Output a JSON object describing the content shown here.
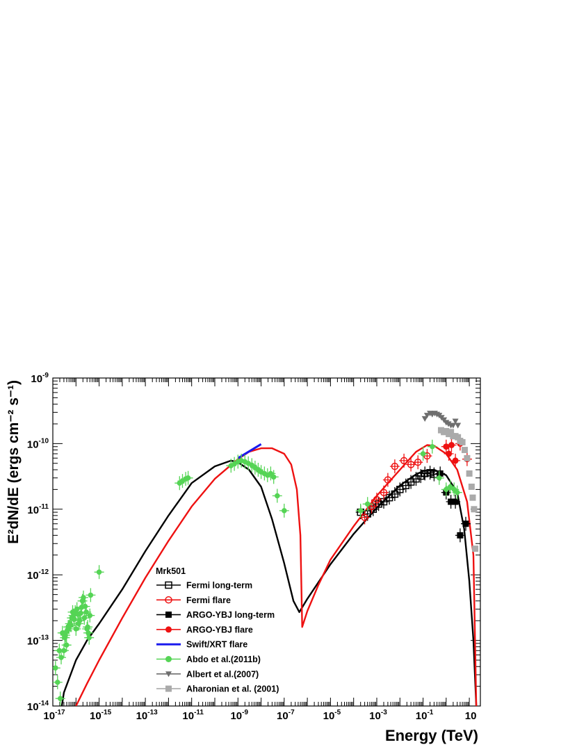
{
  "chart_data": {
    "type": "scatter",
    "xlabel": "Energy (TeV)",
    "ylabel": "E²dN/dE (ergs cm⁻² s⁻¹)",
    "x_scale": "log",
    "y_scale": "log",
    "xlim": [
      1e-17,
      30
    ],
    "ylim": [
      1e-14,
      1e-09
    ],
    "grid": false,
    "legend_title": "Mrk501",
    "legend_placement": "bottom-left",
    "x_ticks": [
      "10-17",
      "10-15",
      "10-13",
      "10-11",
      "10-9",
      "10-7",
      "10-5",
      "10-3",
      "10-1",
      "10"
    ],
    "y_ticks": [
      "10-14",
      "10-13",
      "10-12",
      "10-11",
      "10-10",
      "10-9"
    ],
    "colors": {
      "black": "#000000",
      "red": "#ee1111",
      "blue": "#1a1aee",
      "green": "#55d455",
      "dark_gray": "#6e6e6e",
      "light_gray": "#aaaaaa"
    },
    "series": [
      {
        "name": "Fermi long-term",
        "kind": "model+points",
        "color": "#000000",
        "marker": "open-square",
        "curve": [
          [
            1e-17,
            1.3e-15
          ],
          [
            3e-17,
            1.6e-14
          ],
          [
            1e-16,
            5e-14
          ],
          [
            3e-16,
            1e-13
          ],
          [
            1e-15,
            1.8e-13
          ],
          [
            1e-14,
            6e-13
          ],
          [
            1e-13,
            2.3e-12
          ],
          [
            1e-12,
            8e-12
          ],
          [
            1e-11,
            2.5e-11
          ],
          [
            1e-10,
            4.5e-11
          ],
          [
            5e-10,
            5.5e-11
          ],
          [
            1e-09,
            5.2e-11
          ],
          [
            3e-09,
            4e-11
          ],
          [
            1e-08,
            2.2e-11
          ],
          [
            3e-08,
            7e-12
          ],
          [
            1e-07,
            1.5e-12
          ],
          [
            2.5e-07,
            4e-13
          ],
          [
            4.5e-07,
            2.7e-13
          ],
          [
            1e-06,
            4.3e-13
          ],
          [
            1e-05,
            1.45e-12
          ],
          [
            0.0001,
            4.2e-12
          ],
          [
            0.001,
            1.05e-11
          ],
          [
            0.01,
            2.3e-11
          ],
          [
            0.05,
            3.4e-11
          ],
          [
            0.1,
            3.8e-11
          ],
          [
            0.3,
            4e-11
          ],
          [
            1,
            3.3e-11
          ],
          [
            3,
            1.8e-11
          ],
          [
            6,
            5e-12
          ],
          [
            10,
            8e-13
          ],
          [
            15,
            1e-13
          ],
          [
            20,
            1e-14
          ]
        ],
        "points": [
          [
            0.0002,
            9e-12
          ],
          [
            0.0004,
            8.5e-12
          ],
          [
            0.0007,
            1e-11
          ],
          [
            0.0012,
            1.2e-11
          ],
          [
            0.002,
            1.3e-11
          ],
          [
            0.0035,
            1.5e-11
          ],
          [
            0.006,
            1.7e-11
          ],
          [
            0.01,
            2e-11
          ],
          [
            0.018,
            2.3e-11
          ],
          [
            0.03,
            2.6e-11
          ],
          [
            0.05,
            2.9e-11
          ],
          [
            0.08,
            3.2e-11
          ],
          [
            0.12,
            3.5e-11
          ],
          [
            0.2,
            3.6e-11
          ],
          [
            0.3,
            3.4e-11
          ]
        ]
      },
      {
        "name": "Fermi flare",
        "kind": "model+points",
        "color": "#ee1111",
        "marker": "open-circle",
        "curve": [
          [
            1e-16,
            1e-14
          ],
          [
            3e-16,
            2.2e-14
          ],
          [
            1e-15,
            5e-14
          ],
          [
            1e-14,
            2.2e-13
          ],
          [
            1e-13,
            9e-13
          ],
          [
            1e-12,
            3.3e-12
          ],
          [
            1e-11,
            1.1e-11
          ],
          [
            1e-10,
            2.9e-11
          ],
          [
            1e-09,
            5.8e-11
          ],
          [
            3e-09,
            7.5e-11
          ],
          [
            1e-08,
            8.5e-11
          ],
          [
            3e-08,
            8.5e-11
          ],
          [
            1e-07,
            7e-11
          ],
          [
            2e-07,
            4.8e-11
          ],
          [
            3.5e-07,
            2e-11
          ],
          [
            5e-07,
            4e-12
          ],
          [
            6e-07,
            1.6e-13
          ],
          [
            1e-06,
            2.8e-13
          ],
          [
            3e-06,
            7e-13
          ],
          [
            1e-05,
            1.7e-12
          ],
          [
            0.0001,
            5.5e-12
          ],
          [
            0.001,
            1.6e-11
          ],
          [
            0.01,
            4e-11
          ],
          [
            0.05,
            7.5e-11
          ],
          [
            0.15,
            9.5e-11
          ],
          [
            0.3,
            9.3e-11
          ],
          [
            1,
            7e-11
          ],
          [
            3,
            4e-11
          ],
          [
            8,
            1.3e-11
          ],
          [
            15,
            2e-12
          ],
          [
            20,
            1e-14
          ]
        ],
        "points": [
          [
            0.0003,
            7.5e-12
          ],
          [
            0.0006,
            1.1e-11
          ],
          [
            0.001,
            1.4e-11
          ],
          [
            0.002,
            1.8e-11
          ],
          [
            0.003,
            2.8e-11
          ],
          [
            0.006,
            4.5e-11
          ],
          [
            0.015,
            5.5e-11
          ],
          [
            0.03,
            4.8e-11
          ],
          [
            0.06,
            5.2e-11
          ],
          [
            0.15,
            6.5e-11
          ]
        ]
      },
      {
        "name": "ARGO-YBJ long-term",
        "kind": "points",
        "color": "#000000",
        "marker": "filled-square",
        "points": [
          [
            0.55,
            3.5e-11
          ],
          [
            1,
            1.8e-11
          ],
          [
            1.6,
            1.3e-11
          ],
          [
            2.5,
            1.3e-11
          ],
          [
            4,
            4e-12
          ],
          [
            7,
            6e-12
          ]
        ]
      },
      {
        "name": "ARGO-YBJ flare",
        "kind": "points",
        "color": "#ee1111",
        "marker": "filled-circle",
        "points": [
          [
            1,
            9e-11
          ],
          [
            1.3,
            7e-11
          ],
          [
            1.7,
            9.5e-11
          ],
          [
            2.5,
            5.5e-11
          ],
          [
            4,
            1e-10
          ],
          [
            8,
            5.8e-11
          ]
        ]
      },
      {
        "name": "Swift/XRT flare",
        "kind": "line",
        "color": "#1a1aee",
        "points": [
          [
            1e-09,
            6e-11
          ],
          [
            1e-08,
            9.8e-11
          ]
        ]
      },
      {
        "name": "Abdo et al.(2011b)",
        "kind": "points",
        "color": "#55d455",
        "marker": "filled-circle",
        "points": [
          [
            1.3e-17,
            3.8e-14
          ],
          [
            1.6e-17,
            2.3e-14
          ],
          [
            1.9e-17,
            7e-14
          ],
          [
            2.1e-17,
            1.3e-14
          ],
          [
            2.3e-17,
            5.5e-14
          ],
          [
            2.6e-17,
            1.3e-13
          ],
          [
            3e-17,
            7e-14
          ],
          [
            3.3e-17,
            1.1e-13
          ],
          [
            3.5e-17,
            1.2e-13
          ],
          [
            3.9e-17,
            8.5e-14
          ],
          [
            4.2e-17,
            1.4e-13
          ],
          [
            4.6e-17,
            1.6e-13
          ],
          [
            5e-17,
            1.6e-13
          ],
          [
            5.5e-17,
            1.8e-13
          ],
          [
            6e-17,
            1.7e-13
          ],
          [
            6.6e-17,
            2.2e-13
          ],
          [
            7.2e-17,
            2.7e-13
          ],
          [
            7.8e-17,
            2.4e-13
          ],
          [
            8.5e-17,
            2.1e-13
          ],
          [
            9.3e-17,
            2.7e-13
          ],
          [
            1e-16,
            1.5e-13
          ],
          [
            1.1e-16,
            3e-13
          ],
          [
            1.2e-16,
            2.5e-13
          ],
          [
            1.3e-16,
            1.8e-13
          ],
          [
            1.45e-16,
            2e-13
          ],
          [
            1.6e-16,
            2.6e-13
          ],
          [
            1.75e-16,
            3.2e-13
          ],
          [
            1.9e-16,
            4e-13
          ],
          [
            2.1e-16,
            4.5e-13
          ],
          [
            2.3e-16,
            2.2e-13
          ],
          [
            2.5e-16,
            3.3e-13
          ],
          [
            2.8e-16,
            2.7e-13
          ],
          [
            3e-16,
            1.5e-13
          ],
          [
            3.2e-16,
            1.6e-13
          ],
          [
            3.4e-16,
            1.3e-13
          ],
          [
            3.7e-16,
            1.1e-13
          ],
          [
            4e-16,
            2.4e-13
          ],
          [
            4.3e-16,
            4.9e-13
          ],
          [
            1e-15,
            1.1e-12
          ],
          [
            3e-12,
            2.5e-11
          ],
          [
            4e-12,
            2.7e-11
          ],
          [
            5.5e-12,
            2.9e-11
          ],
          [
            7e-12,
            3e-11
          ],
          [
            5e-10,
            4.6e-11
          ],
          [
            7e-10,
            4.9e-11
          ],
          [
            1e-09,
            5.3e-11
          ],
          [
            1.4e-09,
            5.5e-11
          ],
          [
            2e-09,
            5.3e-11
          ],
          [
            2.8e-09,
            5e-11
          ],
          [
            4e-09,
            4.7e-11
          ],
          [
            5.5e-09,
            4.3e-11
          ],
          [
            7.5e-09,
            4e-11
          ],
          [
            1e-08,
            3.7e-11
          ],
          [
            1.4e-08,
            3.5e-11
          ],
          [
            1.9e-08,
            3.3e-11
          ],
          [
            2.6e-08,
            3.5e-11
          ],
          [
            3.5e-08,
            3.1e-11
          ],
          [
            5e-08,
            1.6e-11
          ],
          [
            1e-07,
            9.5e-12
          ],
          [
            0.0002,
            9.5e-12
          ],
          [
            0.0004,
            1.2e-11
          ],
          [
            0.1,
            7e-11
          ],
          [
            0.25,
            9e-11
          ],
          [
            0.5,
            3e-11
          ],
          [
            1,
            2e-11
          ],
          [
            1.5,
            2.2e-11
          ],
          [
            2.2,
            2e-11
          ],
          [
            3,
            1.8e-11
          ]
        ]
      },
      {
        "name": "Albert et al.(2007)",
        "kind": "points",
        "color": "#6e6e6e",
        "marker": "filled-triangle-down",
        "points": [
          [
            0.12,
            2.4e-10
          ],
          [
            0.15,
            2.7e-10
          ],
          [
            0.2,
            2.9e-10
          ],
          [
            0.25,
            2.8e-10
          ],
          [
            0.32,
            2.9e-10
          ],
          [
            0.4,
            2.8e-10
          ],
          [
            0.5,
            2.7e-10
          ],
          [
            0.63,
            2.5e-10
          ],
          [
            0.8,
            2.3e-10
          ],
          [
            1,
            2.1e-10
          ],
          [
            1.25,
            2e-10
          ],
          [
            1.6,
            1.9e-10
          ],
          [
            2,
            1.9e-10
          ],
          [
            2.5,
            2.2e-10
          ],
          [
            3.2,
            1.9e-10
          ]
        ]
      },
      {
        "name": "Aharonian et al. (2001)",
        "kind": "points",
        "color": "#aaaaaa",
        "marker": "filled-square",
        "points": [
          [
            0.6,
            1.6e-10
          ],
          [
            0.8,
            1.5e-10
          ],
          [
            1,
            1.55e-10
          ],
          [
            1.3,
            1.4e-10
          ],
          [
            1.6,
            1.5e-10
          ],
          [
            2,
            1.3e-10
          ],
          [
            2.5,
            1.3e-10
          ],
          [
            3.2,
            1.25e-10
          ],
          [
            4,
            1.1e-10
          ],
          [
            5,
            1.05e-10
          ],
          [
            6.3,
            8e-11
          ],
          [
            8,
            6e-11
          ],
          [
            10,
            3.5e-11
          ],
          [
            12.5,
            2.2e-11
          ],
          [
            14,
            1.5e-11
          ],
          [
            16,
            1e-11
          ],
          [
            18,
            2.5e-12
          ]
        ]
      }
    ]
  }
}
